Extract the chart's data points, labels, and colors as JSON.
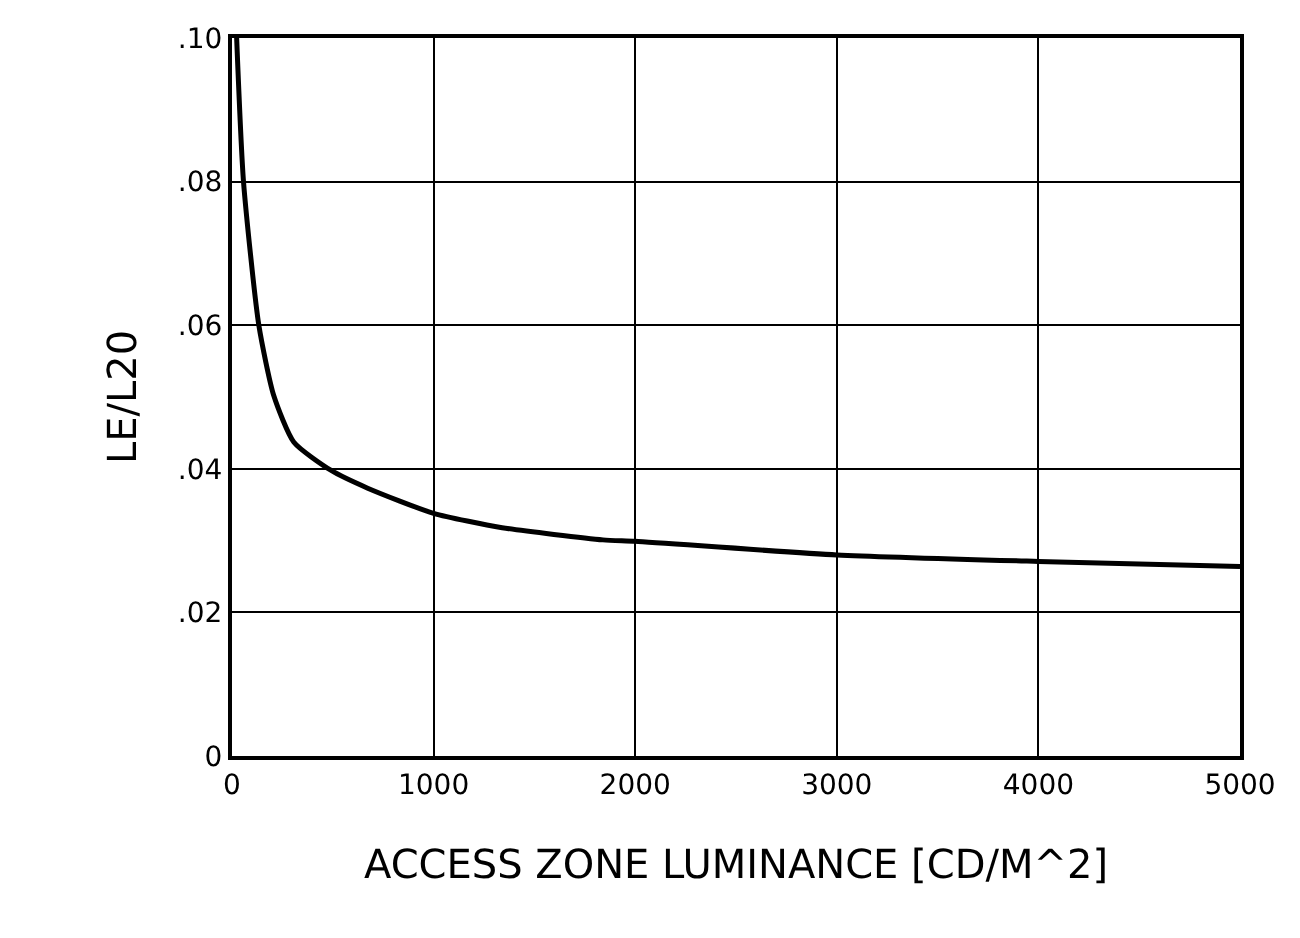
{
  "chart_data": {
    "type": "line",
    "xlabel": "ACCESS ZONE LUMINANCE [CD/M^2]",
    "ylabel": "LE/L20",
    "x": [
      23,
      57,
      133,
      207,
      307,
      490,
      673,
      1000,
      1340,
      1840,
      2000,
      3000,
      4000,
      5000
    ],
    "series": [
      {
        "color": "#000000",
        "values": [
          0.1,
          0.08,
          0.06,
          0.0502,
          0.0437,
          0.0398,
          0.0373,
          0.0338,
          0.0318,
          0.0301,
          0.0299,
          0.028,
          0.0271,
          0.0264
        ]
      }
    ],
    "xlim": [
      0,
      5000
    ],
    "ylim": [
      0,
      0.1
    ],
    "xticks": [
      0,
      1000,
      2000,
      3000,
      4000,
      5000
    ],
    "yticks": [
      0,
      {
        "value": 0.02,
        "label": ".02"
      },
      {
        "value": 0.04,
        "label": ".04"
      },
      {
        "value": 0.06,
        "label": ".06"
      },
      {
        "value": 0.08,
        "label": ".08"
      },
      {
        "value": 0.1,
        "label": ".10"
      }
    ],
    "grid": true,
    "marker": "none",
    "line_style": "solid",
    "legend": false
  }
}
